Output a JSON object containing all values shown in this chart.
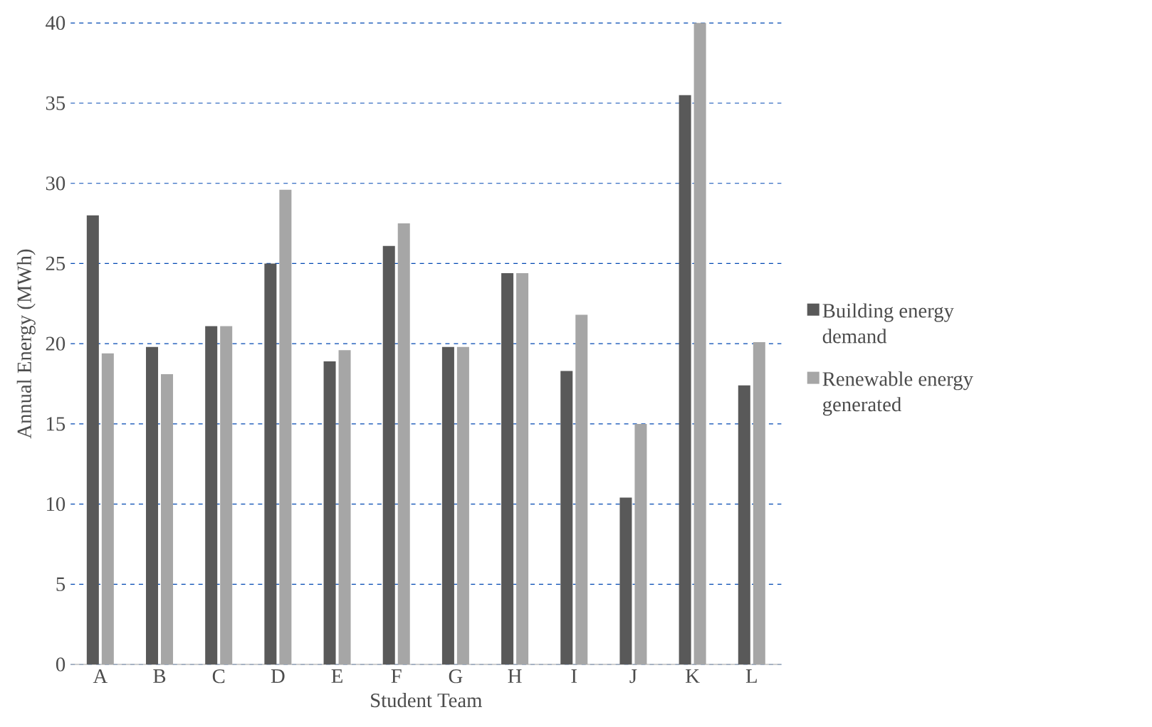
{
  "chart_data": {
    "type": "bar",
    "xlabel": "Student Team",
    "ylabel": "Annual Energy (MWh)",
    "categories": [
      "A",
      "B",
      "C",
      "D",
      "E",
      "F",
      "G",
      "H",
      "I",
      "J",
      "K",
      "L"
    ],
    "series": [
      {
        "name": "Building energy demand",
        "color": "#595959",
        "values": [
          28.0,
          19.8,
          21.1,
          25.0,
          18.9,
          26.1,
          19.8,
          24.4,
          18.3,
          10.4,
          35.5,
          17.4
        ]
      },
      {
        "name": "Renewable energy generated",
        "color": "#a6a6a6",
        "values": [
          19.4,
          18.1,
          21.1,
          29.6,
          19.6,
          27.5,
          19.8,
          24.4,
          21.8,
          15.0,
          40.0,
          20.1
        ]
      }
    ],
    "ylim": [
      0,
      40
    ],
    "yticks": [
      0,
      5,
      10,
      15,
      20,
      25,
      30,
      35,
      40
    ],
    "grid": "y",
    "legend": "right"
  }
}
